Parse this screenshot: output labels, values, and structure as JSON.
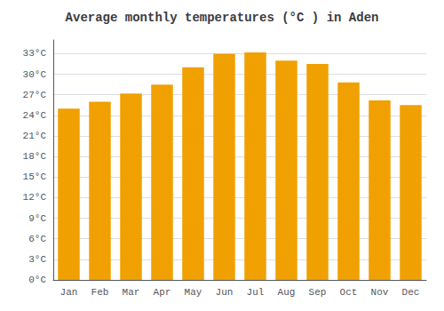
{
  "chart_data": {
    "type": "bar",
    "title": "Average monthly temperatures (°C ) in Aden",
    "categories": [
      "Jan",
      "Feb",
      "Mar",
      "Apr",
      "May",
      "Jun",
      "Jul",
      "Aug",
      "Sep",
      "Oct",
      "Nov",
      "Dec"
    ],
    "values": [
      25.0,
      26.0,
      27.2,
      28.5,
      31.0,
      33.0,
      33.2,
      32.0,
      31.5,
      28.8,
      26.2,
      25.5
    ],
    "color": "#F0A000",
    "ylim": [
      0,
      35
    ],
    "yticks": [
      {
        "value": 0,
        "label": "0°C"
      },
      {
        "value": 3,
        "label": "3°C"
      },
      {
        "value": 6,
        "label": "6°C"
      },
      {
        "value": 9,
        "label": "9°C"
      },
      {
        "value": 12,
        "label": "12°C"
      },
      {
        "value": 15,
        "label": "15°C"
      },
      {
        "value": 18,
        "label": "18°C"
      },
      {
        "value": 21,
        "label": "21°C"
      },
      {
        "value": 24,
        "label": "24°C"
      },
      {
        "value": 27,
        "label": "27°C"
      },
      {
        "value": 30,
        "label": "30°C"
      },
      {
        "value": 33,
        "label": "33°C"
      }
    ],
    "grid": true
  }
}
